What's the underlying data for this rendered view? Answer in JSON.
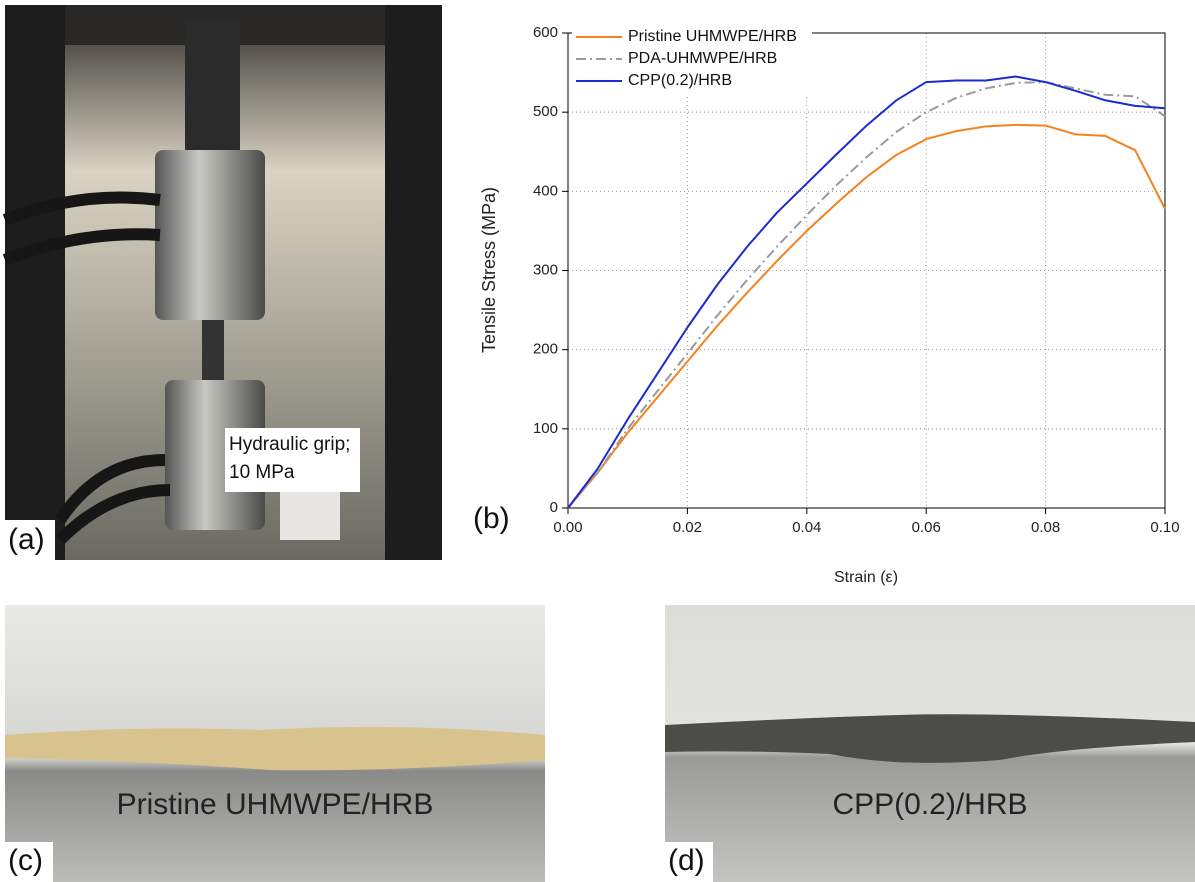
{
  "chart_data": {
    "type": "line",
    "xlabel": "Strain (ε)",
    "ylabel": "Tensile Stress (MPa)",
    "x": [
      0,
      0.005,
      0.01,
      0.015,
      0.02,
      0.025,
      0.03,
      0.035,
      0.04,
      0.045,
      0.05,
      0.055,
      0.06,
      0.065,
      0.07,
      0.075,
      0.08,
      0.085,
      0.09,
      0.095,
      0.1
    ],
    "series": [
      {
        "name": "Pristine UHMWPE/HRB",
        "color": "#f5821f",
        "style": "solid",
        "values": [
          0,
          45,
          95,
          140,
          185,
          230,
          272,
          312,
          350,
          385,
          418,
          446,
          466,
          476,
          482,
          484,
          483,
          472,
          470,
          452,
          378
        ]
      },
      {
        "name": "PDA-UHMWPE/HRB",
        "color": "#9a9a9a",
        "style": "dash-dot",
        "values": [
          0,
          45,
          100,
          148,
          195,
          243,
          288,
          330,
          370,
          408,
          443,
          475,
          500,
          518,
          530,
          537,
          538,
          530,
          522,
          520,
          495
        ]
      },
      {
        "name": "CPP(0.2)/HRB",
        "color": "#1a2ccf",
        "style": "solid",
        "values": [
          0,
          50,
          112,
          170,
          228,
          282,
          330,
          373,
          410,
          447,
          483,
          515,
          538,
          540,
          540,
          545,
          538,
          527,
          515,
          508,
          505
        ]
      }
    ],
    "xlim": [
      0,
      0.1
    ],
    "xticks": [
      {
        "value": 0,
        "label": "0.00"
      },
      {
        "value": 0.02,
        "label": "0.02"
      },
      {
        "value": 0.04,
        "label": "0.04"
      },
      {
        "value": 0.06,
        "label": "0.06"
      },
      {
        "value": 0.08,
        "label": "0.08"
      },
      {
        "value": 0.1,
        "label": "0.10"
      }
    ],
    "ylim": [
      0,
      600
    ],
    "yticks": [
      0,
      100,
      200,
      300,
      400,
      500,
      600
    ],
    "grid": true,
    "legend": "top-left"
  },
  "panels": {
    "a": {
      "label": "(a)",
      "annotation": [
        "Hydraulic grip;",
        "10 MPa"
      ]
    },
    "b": {
      "label": "(b)"
    },
    "c": {
      "label": "(c)",
      "caption": "Pristine UHMWPE/HRB"
    },
    "d": {
      "label": "(d)",
      "caption": "CPP(0.2)/HRB"
    }
  }
}
